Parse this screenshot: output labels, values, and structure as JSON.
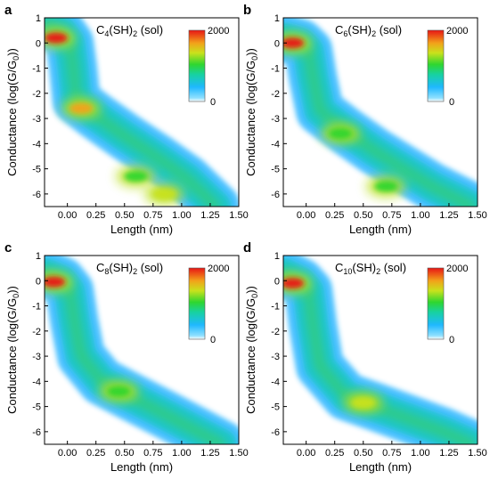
{
  "chart_data": [
    {
      "panel_letter": "a",
      "type": "heatmap",
      "title_main": "C",
      "title_sub": "4",
      "title_suffix": "(SH)",
      "title_suffix_sub": "2",
      "title_tail": " (sol)",
      "xlabel": "Length (nm)",
      "ylabel": "Conductance (log(G/G",
      "ylabel_sub": "0",
      "ylabel_tail": "))",
      "xlim": [
        -0.2,
        1.5
      ],
      "ylim": [
        -6.5,
        1
      ],
      "xticks": [
        "0.00",
        "0.25",
        "0.50",
        "0.75",
        "1.00",
        "1.25",
        "1.50"
      ],
      "yticks": [
        "1",
        "0",
        "-1",
        "-2",
        "-3",
        "-4",
        "-5",
        "-6"
      ],
      "colorbar": {
        "min": "0",
        "max": "2000"
      },
      "band": [
        [
          -0.2,
          0.75
        ],
        [
          -0.05,
          0.45
        ],
        [
          0.02,
          0.0
        ],
        [
          0.05,
          -1.0
        ],
        [
          0.08,
          -2.3
        ],
        [
          0.25,
          -2.9
        ],
        [
          0.5,
          -3.7
        ],
        [
          0.8,
          -4.6
        ],
        [
          1.05,
          -5.4
        ],
        [
          1.3,
          -6.5
        ]
      ],
      "hotspots": [
        {
          "x": -0.1,
          "y": 0.2,
          "level": 1.0
        },
        {
          "x": 0.12,
          "y": -2.6,
          "level": 0.85
        },
        {
          "x": 0.85,
          "y": -6.0,
          "level": 0.75
        },
        {
          "x": 0.6,
          "y": -5.3,
          "level": 0.6
        }
      ]
    },
    {
      "panel_letter": "b",
      "type": "heatmap",
      "title_main": "C",
      "title_sub": "6",
      "title_suffix": "(SH)",
      "title_suffix_sub": "2",
      "title_tail": " (sol)",
      "xlabel": "Length (nm)",
      "ylabel": "Conductance (log(G/G",
      "ylabel_sub": "0",
      "ylabel_tail": "))",
      "xlim": [
        -0.2,
        1.5
      ],
      "ylim": [
        -6.5,
        1
      ],
      "xticks": [
        "0.00",
        "0.25",
        "0.50",
        "0.75",
        "1.00",
        "1.25",
        "1.50"
      ],
      "yticks": [
        "1",
        "0",
        "-1",
        "-2",
        "-3",
        "-4",
        "-5",
        "-6"
      ],
      "colorbar": {
        "min": "0",
        "max": "2000"
      },
      "band": [
        [
          -0.2,
          0.2
        ],
        [
          -0.05,
          0.0
        ],
        [
          0.02,
          -0.3
        ],
        [
          0.06,
          -1.4
        ],
        [
          0.12,
          -2.7
        ],
        [
          0.35,
          -3.5
        ],
        [
          0.6,
          -4.3
        ],
        [
          0.85,
          -5.0
        ],
        [
          1.1,
          -5.7
        ],
        [
          1.45,
          -6.5
        ]
      ],
      "hotspots": [
        {
          "x": -0.12,
          "y": 0.0,
          "level": 1.0
        },
        {
          "x": 0.3,
          "y": -3.6,
          "level": 0.6
        },
        {
          "x": 0.7,
          "y": -5.7,
          "level": 0.55
        }
      ]
    },
    {
      "panel_letter": "c",
      "type": "heatmap",
      "title_main": "C",
      "title_sub": "8",
      "title_suffix": "(SH)",
      "title_suffix_sub": "2",
      "title_tail": " (sol)",
      "xlabel": "Length (nm)",
      "ylabel": "Conductance (log(G/G",
      "ylabel_sub": "0",
      "ylabel_tail": "))",
      "xlim": [
        -0.2,
        1.5
      ],
      "ylim": [
        -6.5,
        1
      ],
      "xticks": [
        "0.00",
        "0.25",
        "0.50",
        "0.75",
        "1.00",
        "1.25",
        "1.50"
      ],
      "yticks": [
        "1",
        "0",
        "-1",
        "-2",
        "-3",
        "-4",
        "-5",
        "-6"
      ],
      "colorbar": {
        "min": "0",
        "max": "2000"
      },
      "band": [
        [
          -0.2,
          0.3
        ],
        [
          -0.05,
          0.0
        ],
        [
          0.02,
          -0.4
        ],
        [
          0.06,
          -1.6
        ],
        [
          0.12,
          -3.0
        ],
        [
          0.3,
          -4.0
        ],
        [
          0.55,
          -4.6
        ],
        [
          0.85,
          -5.3
        ],
        [
          1.1,
          -5.9
        ],
        [
          1.35,
          -6.5
        ]
      ],
      "hotspots": [
        {
          "x": -0.12,
          "y": -0.05,
          "level": 1.0
        },
        {
          "x": 0.45,
          "y": -4.4,
          "level": 0.55
        }
      ]
    },
    {
      "panel_letter": "d",
      "type": "heatmap",
      "title_main": "C",
      "title_sub": "10",
      "title_suffix": "(SH)",
      "title_suffix_sub": "2",
      "title_tail": " (sol)",
      "xlabel": "Length (nm)",
      "ylabel": "Conductance (log(G/G",
      "ylabel_sub": "0",
      "ylabel_tail": "))",
      "xlim": [
        -0.2,
        1.5
      ],
      "ylim": [
        -6.5,
        1
      ],
      "xticks": [
        "0.00",
        "0.25",
        "0.50",
        "0.75",
        "1.00",
        "1.25",
        "1.50"
      ],
      "yticks": [
        "1",
        "0",
        "-1",
        "-2",
        "-3",
        "-4",
        "-5",
        "-6"
      ],
      "colorbar": {
        "min": "0",
        "max": "2000"
      },
      "band": [
        [
          -0.2,
          0.3
        ],
        [
          -0.05,
          -0.05
        ],
        [
          0.02,
          -0.4
        ],
        [
          0.06,
          -1.8
        ],
        [
          0.12,
          -3.4
        ],
        [
          0.35,
          -4.6
        ],
        [
          0.6,
          -5.0
        ],
        [
          0.9,
          -5.5
        ],
        [
          1.2,
          -6.0
        ],
        [
          1.45,
          -6.5
        ]
      ],
      "hotspots": [
        {
          "x": -0.12,
          "y": -0.1,
          "level": 1.0
        },
        {
          "x": 0.5,
          "y": -4.85,
          "level": 0.75
        }
      ]
    }
  ]
}
